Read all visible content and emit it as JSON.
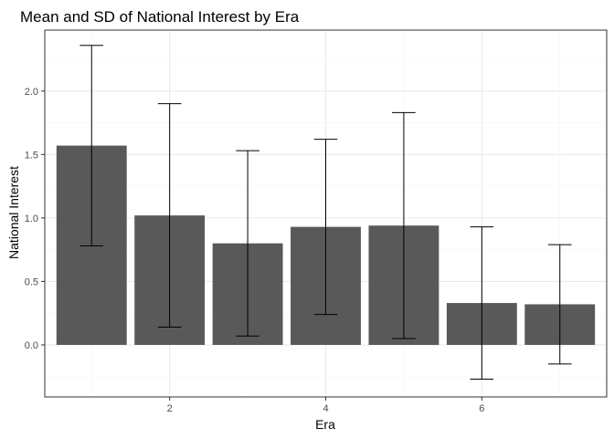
{
  "chart_data": {
    "type": "bar",
    "title": "Mean and SD of National Interest by Era",
    "xlabel": "Era",
    "ylabel": "National Interest",
    "x": [
      1,
      2,
      3,
      4,
      5,
      6,
      7
    ],
    "values": [
      1.57,
      1.02,
      0.8,
      0.93,
      0.94,
      0.33,
      0.32
    ],
    "sd": [
      0.79,
      0.88,
      0.73,
      0.69,
      0.89,
      0.6,
      0.47
    ],
    "error_low": [
      0.78,
      0.14,
      0.07,
      0.24,
      0.05,
      -0.27,
      -0.15
    ],
    "error_high": [
      2.36,
      1.9,
      1.53,
      1.62,
      1.83,
      0.93,
      0.79
    ],
    "xlim": [
      0.4,
      7.6
    ],
    "ylim": [
      -0.41,
      2.48
    ],
    "x_ticks": [
      2,
      4,
      6
    ],
    "x_tick_labels": [
      "2",
      "4",
      "6"
    ],
    "y_ticks": [
      0.0,
      0.5,
      1.0,
      1.5,
      2.0
    ],
    "y_tick_labels": [
      "0.0",
      "0.5",
      "1.0",
      "1.5",
      "2.0"
    ],
    "grid": true,
    "legend": "none",
    "colors": {
      "bar": "#595959",
      "error_bar": "#000000",
      "grid_major": "#ebebeb",
      "grid_minor": "#f5f5f5",
      "panel_border": "#333333"
    }
  }
}
